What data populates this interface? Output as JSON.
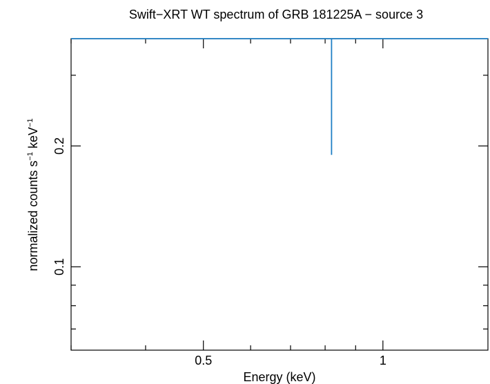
{
  "chart_data": {
    "type": "line",
    "title": "Swift−XRT WT spectrum of GRB 181225A − source 3",
    "xlabel": "Energy (keV)",
    "ylabel_main": "normalized counts s",
    "ylabel_sup1": "−1",
    "ylabel_mid": " keV",
    "ylabel_sup2": "−1",
    "x_scale": "log",
    "y_scale": "log",
    "xlim": [
      0.3,
      1.5
    ],
    "ylim": [
      0.062,
      0.37
    ],
    "x_ticks": [
      {
        "value": 0.5,
        "label": "0.5"
      },
      {
        "value": 1,
        "label": "1"
      }
    ],
    "y_ticks": [
      {
        "value": 0.1,
        "label": "0.1"
      },
      {
        "value": 0.2,
        "label": "0.2"
      }
    ],
    "series": [
      {
        "color": "#1f7fc4",
        "x": [
          0.3,
          0.82,
          0.82,
          0.82,
          1.5
        ],
        "y": [
          0.37,
          0.37,
          0.19,
          0.37,
          0.37
        ]
      }
    ],
    "grid": false
  }
}
